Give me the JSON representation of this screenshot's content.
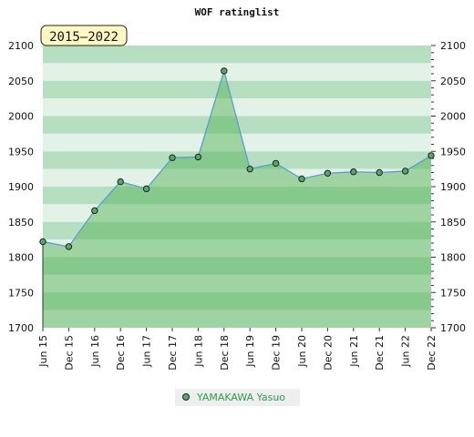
{
  "chart_data": {
    "type": "area",
    "title": "WOF ratinglist",
    "period_label": "2015–2022",
    "categories": [
      "Jun 15",
      "Dec 15",
      "Jun 16",
      "Dec 16",
      "Jun 17",
      "Dec 17",
      "Jun 18",
      "Dec 18",
      "Jun 19",
      "Dec 19",
      "Jun 20",
      "Dec 20",
      "Jun 21",
      "Dec 21",
      "Jun 22",
      "Dec 22"
    ],
    "series": [
      {
        "name": "YAMAKAWA Yasuo",
        "values": [
          1822,
          1815,
          1866,
          1907,
          1897,
          1941,
          1942,
          2064,
          1925,
          1933,
          1911,
          1919,
          1921,
          1920,
          1922,
          1944
        ]
      }
    ],
    "ylim": [
      1700,
      2100
    ],
    "yticks": [
      1700,
      1750,
      1800,
      1850,
      1900,
      1950,
      2000,
      2050,
      2100
    ],
    "xlabel": "",
    "ylabel": "",
    "grid": true,
    "legend_position": "bottom-center",
    "colors": {
      "line": "#5b9bd5",
      "marker_fill": "#55a868",
      "marker_stroke": "#222222",
      "fill": "#4caf50",
      "band_light": "#e3f2e6",
      "band_dark": "#b5dfc0",
      "legend_text": "#2e9e4f",
      "period_box_fill": "#fff8c4"
    }
  }
}
